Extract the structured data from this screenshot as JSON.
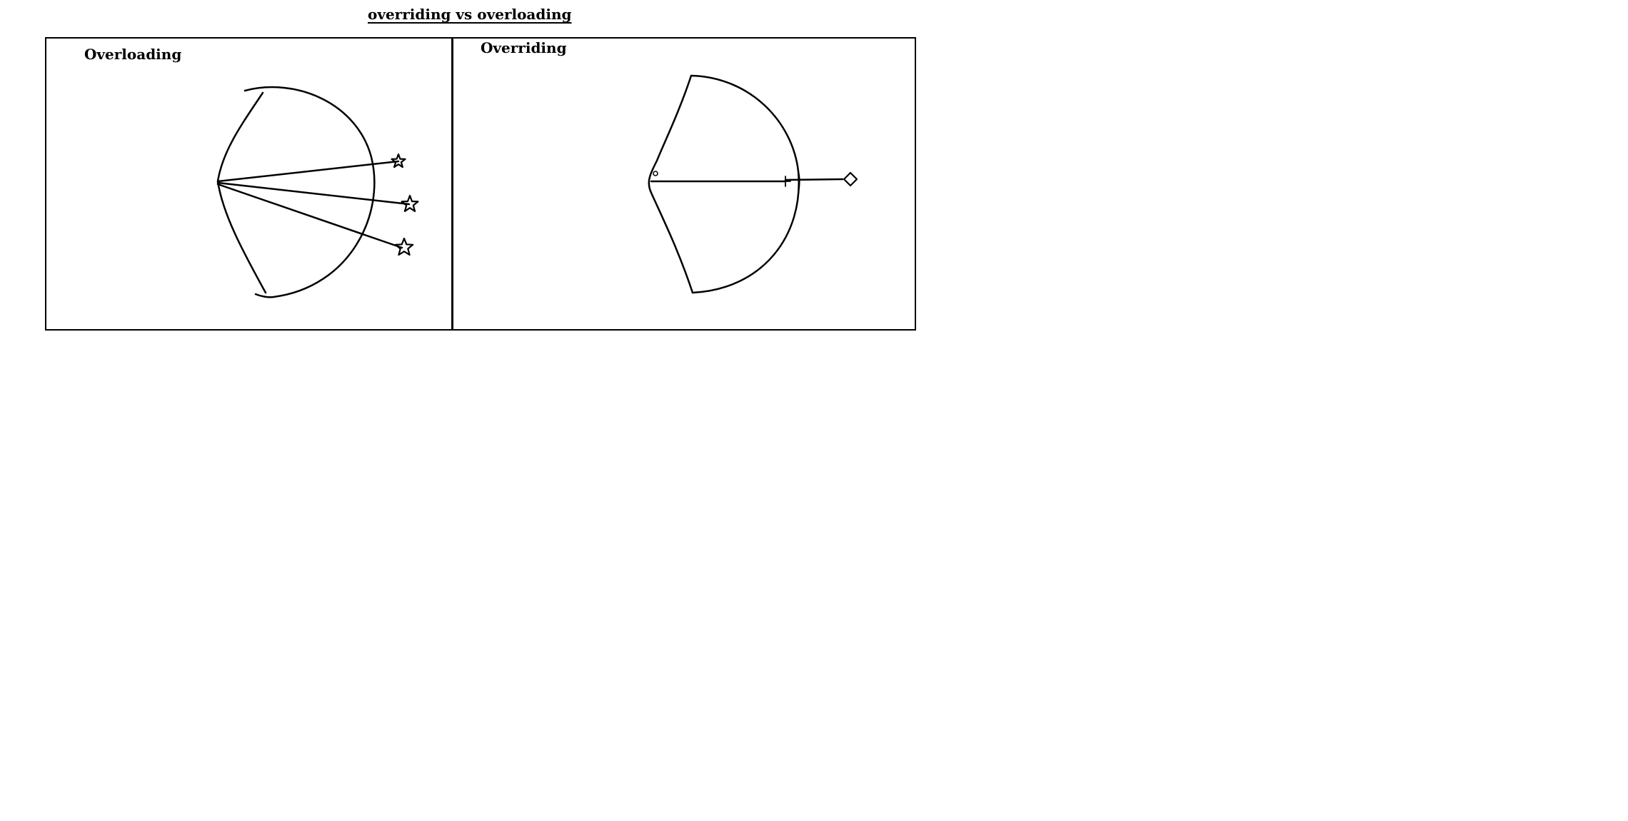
{
  "title": "overriding vs overloading",
  "panels": [
    {
      "label": "Overloading",
      "shapes": [
        "bow-shape",
        "arrow",
        "arrow",
        "arrow",
        "star-icon",
        "star-icon",
        "star-icon"
      ]
    },
    {
      "label": "Overriding",
      "shapes": [
        "bow-shape",
        "arrow",
        "diamond-icon"
      ]
    }
  ],
  "colors": {
    "stroke": "#000000",
    "background": "#ffffff"
  }
}
